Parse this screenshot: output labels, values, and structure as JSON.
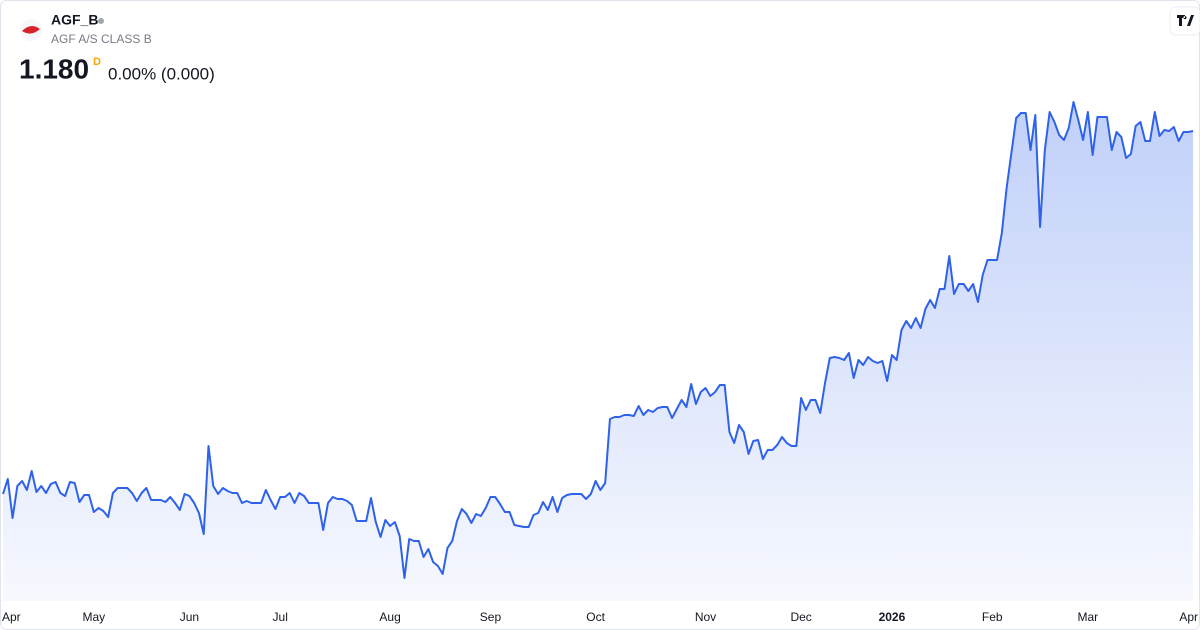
{
  "symbol": "AGF_B",
  "name": "AGF A/S CLASS B",
  "price": "1.180",
  "interval": "D",
  "change": "0.00% (0.000)",
  "chart_data": {
    "type": "area",
    "color": "#2f62ea",
    "xlim": [
      0,
      249
    ],
    "ylim": [
      0.71,
      1.22
    ],
    "xticks": [
      {
        "value": 0,
        "label": "Apr"
      },
      {
        "value": 19,
        "label": "May"
      },
      {
        "value": 39,
        "label": "Jun"
      },
      {
        "value": 58,
        "label": "Jul"
      },
      {
        "value": 81,
        "label": "Aug"
      },
      {
        "value": 102,
        "label": "Sep"
      },
      {
        "value": 124,
        "label": "Oct"
      },
      {
        "value": 147,
        "label": "Nov"
      },
      {
        "value": 167,
        "label": "Dec"
      },
      {
        "value": 186,
        "label": "2026",
        "bold": true
      },
      {
        "value": 207,
        "label": "Feb"
      },
      {
        "value": 227,
        "label": "Mar"
      },
      {
        "value": 248,
        "label": "Apr"
      }
    ],
    "values": [
      0.817,
      0.832,
      0.793,
      0.825,
      0.83,
      0.821,
      0.84,
      0.819,
      0.825,
      0.818,
      0.827,
      0.829,
      0.818,
      0.815,
      0.829,
      0.828,
      0.809,
      0.816,
      0.816,
      0.799,
      0.803,
      0.8,
      0.794,
      0.818,
      0.823,
      0.823,
      0.823,
      0.818,
      0.81,
      0.818,
      0.823,
      0.811,
      0.811,
      0.811,
      0.809,
      0.814,
      0.808,
      0.801,
      0.817,
      0.815,
      0.808,
      0.798,
      0.777,
      0.865,
      0.825,
      0.817,
      0.823,
      0.82,
      0.818,
      0.818,
      0.808,
      0.81,
      0.808,
      0.808,
      0.808,
      0.821,
      0.811,
      0.802,
      0.814,
      0.814,
      0.818,
      0.808,
      0.818,
      0.815,
      0.808,
      0.808,
      0.808,
      0.781,
      0.808,
      0.814,
      0.812,
      0.812,
      0.81,
      0.806,
      0.79,
      0.79,
      0.79,
      0.813,
      0.789,
      0.774,
      0.791,
      0.785,
      0.789,
      0.775,
      0.733,
      0.772,
      0.77,
      0.77,
      0.754,
      0.762,
      0.749,
      0.745,
      0.737,
      0.763,
      0.77,
      0.79,
      0.802,
      0.797,
      0.788,
      0.797,
      0.795,
      0.803,
      0.814,
      0.814,
      0.807,
      0.799,
      0.799,
      0.786,
      0.785,
      0.784,
      0.784,
      0.796,
      0.798,
      0.809,
      0.801,
      0.814,
      0.799,
      0.813,
      0.816,
      0.817,
      0.817,
      0.817,
      0.812,
      0.817,
      0.83,
      0.821,
      0.828,
      0.892,
      0.894,
      0.894,
      0.896,
      0.896,
      0.895,
      0.905,
      0.896,
      0.901,
      0.899,
      0.903,
      0.904,
      0.904,
      0.893,
      0.902,
      0.911,
      0.904,
      0.927,
      0.907,
      0.919,
      0.923,
      0.915,
      0.919,
      0.926,
      0.926,
      0.879,
      0.868,
      0.886,
      0.879,
      0.857,
      0.87,
      0.871,
      0.852,
      0.861,
      0.861,
      0.866,
      0.874,
      0.868,
      0.865,
      0.865,
      0.913,
      0.901,
      0.911,
      0.911,
      0.898,
      0.928,
      0.953,
      0.954,
      0.953,
      0.951,
      0.958,
      0.933,
      0.951,
      0.946,
      0.954,
      0.95,
      0.948,
      0.95,
      0.93,
      0.956,
      0.951,
      0.981,
      0.99,
      0.983,
      0.993,
      0.983,
      1.002,
      1.011,
      1.003,
      1.022,
      1.022,
      1.055,
      1.017,
      1.027,
      1.027,
      1.02,
      1.027,
      1.009,
      1.036,
      1.051,
      1.051,
      1.051,
      1.078,
      1.123,
      1.158,
      1.193,
      1.198,
      1.198,
      1.161,
      1.196,
      1.084,
      1.161,
      1.199,
      1.189,
      1.176,
      1.171,
      1.183,
      1.209,
      1.191,
      1.171,
      1.199,
      1.156,
      1.194,
      1.194,
      1.194,
      1.161,
      1.179,
      1.174,
      1.153,
      1.157,
      1.185,
      1.189,
      1.17,
      1.17,
      1.199,
      1.175,
      1.181,
      1.18,
      1.184,
      1.17,
      1.179,
      1.179,
      1.18
    ]
  }
}
